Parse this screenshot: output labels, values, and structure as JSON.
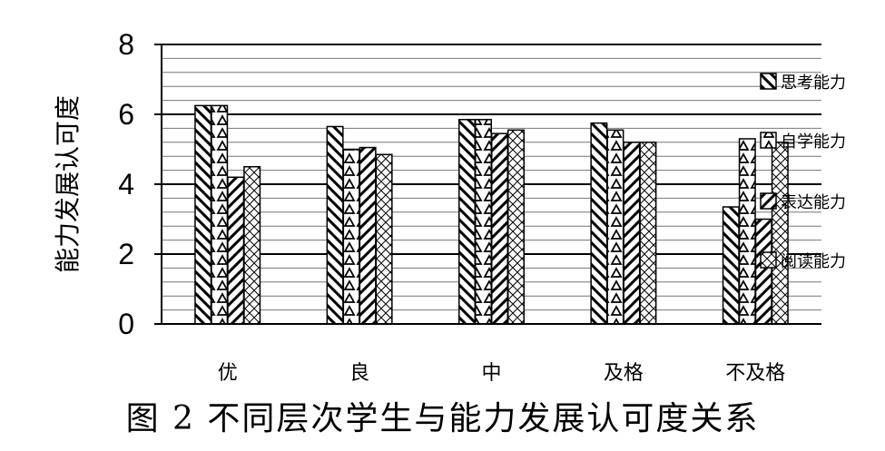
{
  "chart_data": {
    "type": "bar",
    "title": "",
    "ylabel": "能力发展认可度",
    "xlabel": "",
    "ylim": [
      0,
      8
    ],
    "yticks": [
      0,
      2,
      4,
      6,
      8
    ],
    "grid": true,
    "legend_placement": "right",
    "categories": [
      "优",
      "良",
      "中",
      "及格",
      "不及格"
    ],
    "series": [
      {
        "name": "思考能力",
        "pattern": "back-diagonal-hatch",
        "values": [
          6.25,
          5.65,
          5.85,
          5.75,
          3.35
        ]
      },
      {
        "name": "自学能力",
        "pattern": "triangle-hatch",
        "values": [
          6.25,
          5.0,
          5.85,
          5.55,
          5.3
        ]
      },
      {
        "name": "表达能力",
        "pattern": "forward-diagonal-hatch",
        "values": [
          4.2,
          5.05,
          5.45,
          5.2,
          3.0
        ]
      },
      {
        "name": "阅读能力",
        "pattern": "diamond-hatch",
        "values": [
          4.5,
          4.85,
          5.55,
          5.2,
          5.2
        ]
      }
    ]
  },
  "caption": "图 2  不同层次学生与能力发展认可度关系"
}
